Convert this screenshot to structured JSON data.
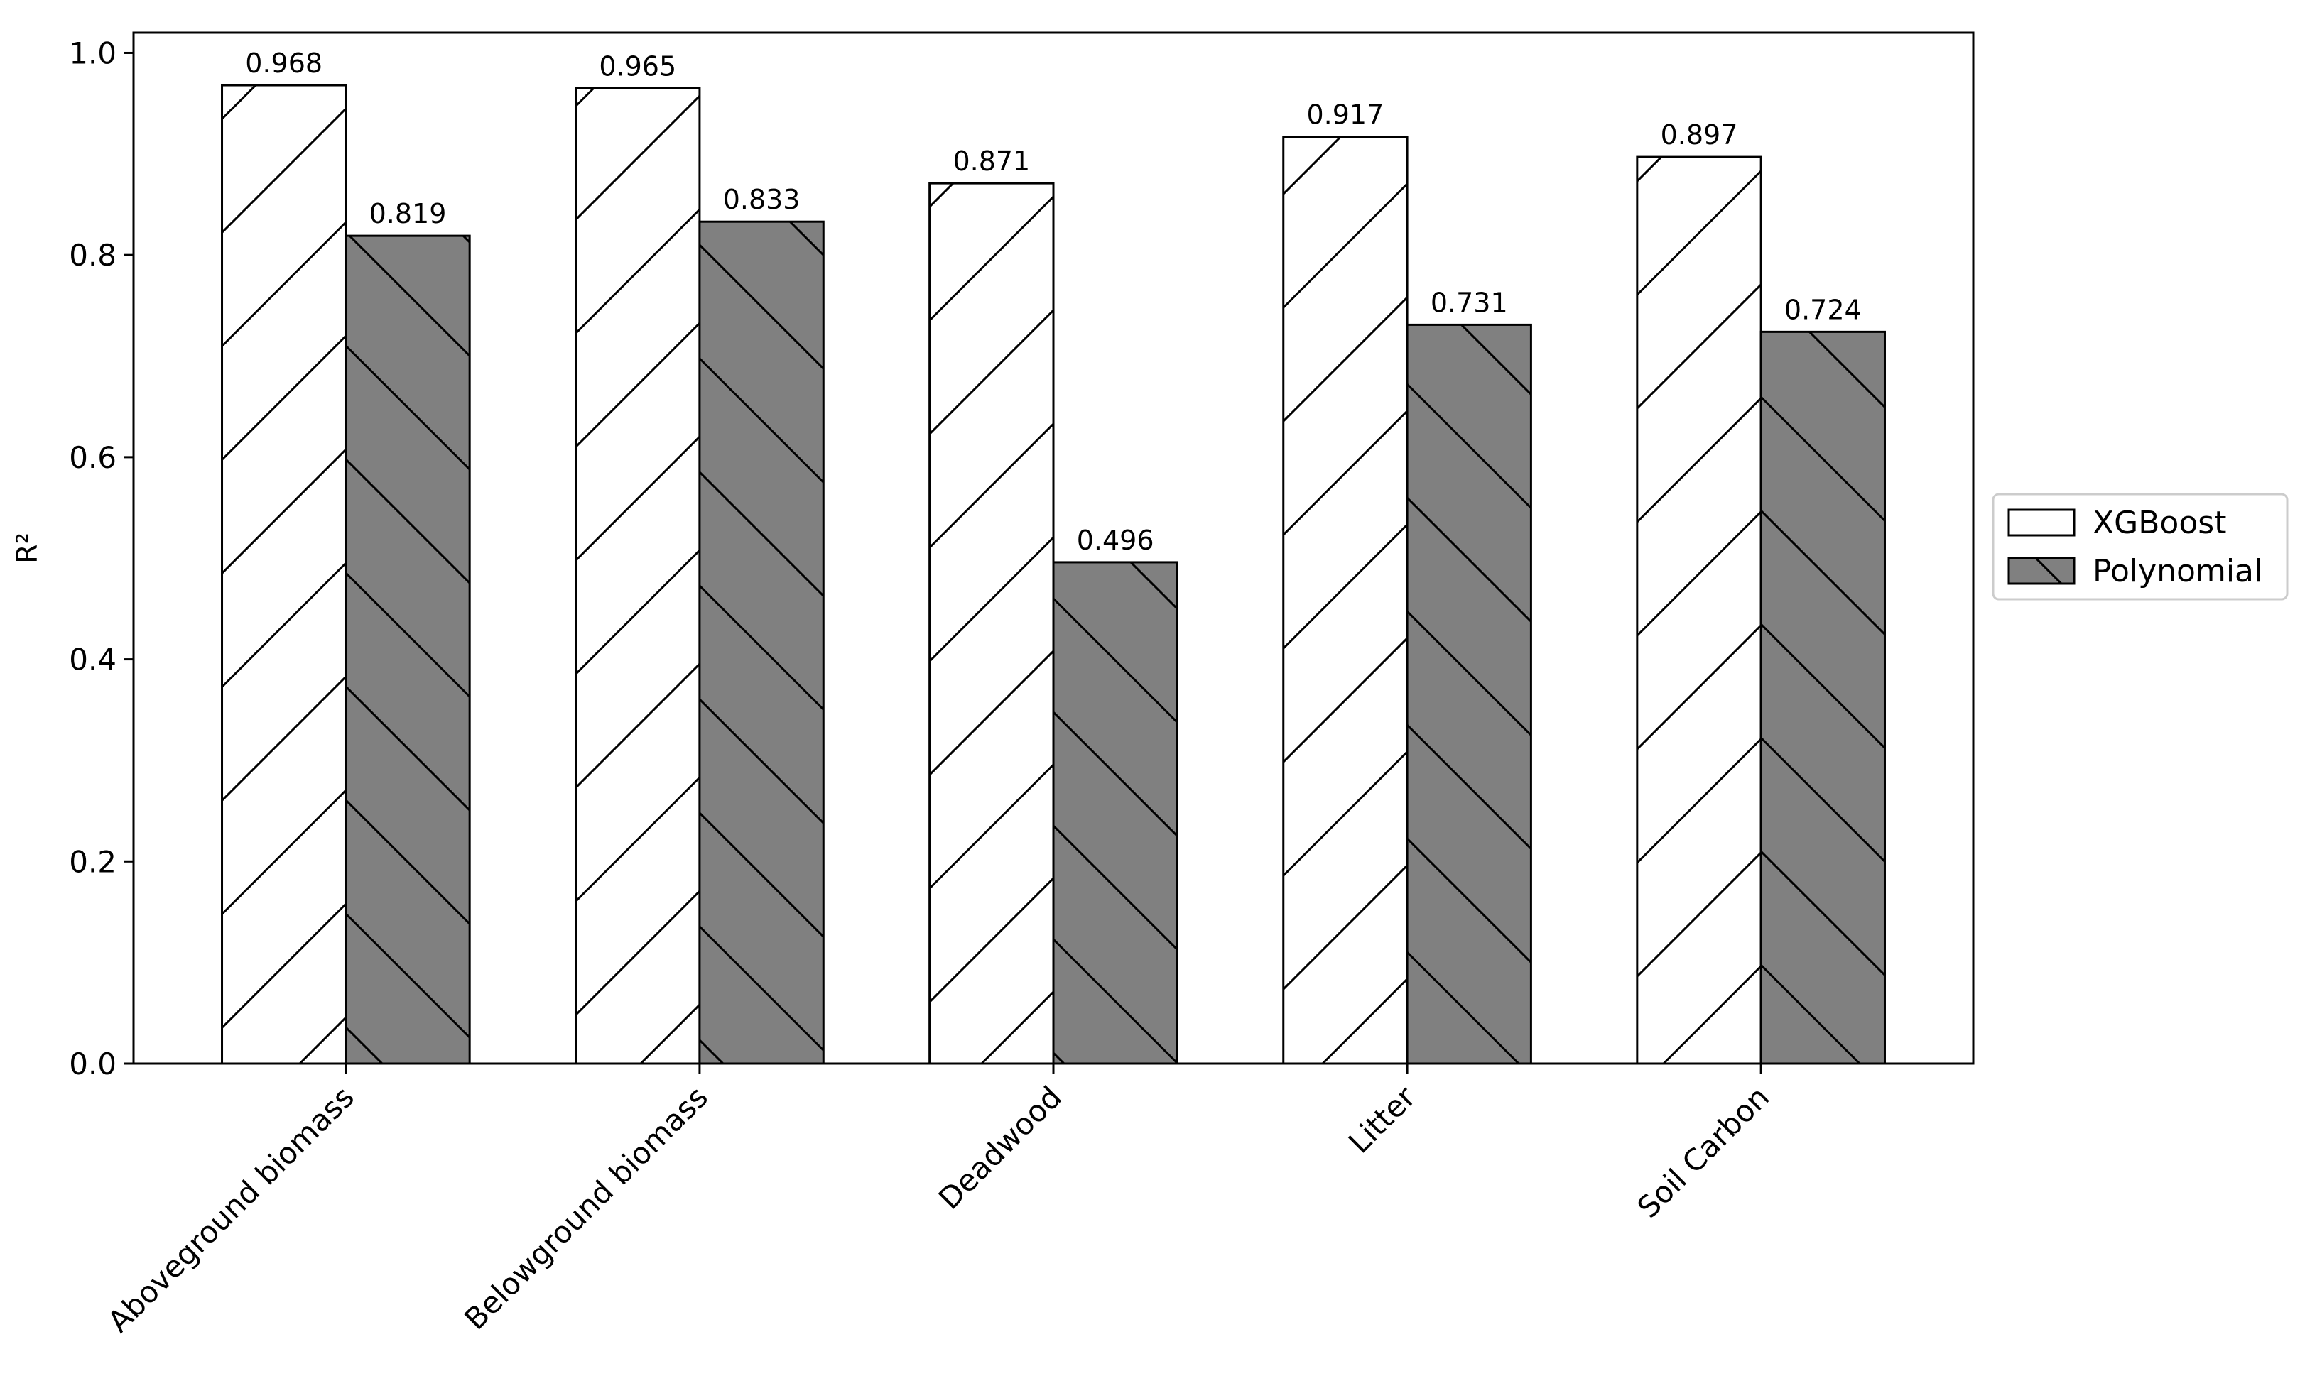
{
  "chart_data": {
    "type": "bar",
    "title": "",
    "xlabel": "",
    "ylabel": "R²",
    "ylim": [
      0,
      1.0
    ],
    "yticks": [
      "0.0",
      "0.2",
      "0.4",
      "0.6",
      "0.8",
      "1.0"
    ],
    "categories": [
      "Aboveground biomass",
      "Belowground biomass",
      "Deadwood",
      "Litter",
      "Soil Carbon"
    ],
    "series": [
      {
        "name": "XGBoost",
        "values": [
          0.968,
          0.965,
          0.871,
          0.917,
          0.897
        ],
        "labels": [
          "0.968",
          "0.965",
          "0.871",
          "0.917",
          "0.897"
        ],
        "fill": "#ffffff",
        "hatch": "forward-diagonal"
      },
      {
        "name": "Polynomial",
        "values": [
          0.819,
          0.833,
          0.496,
          0.731,
          0.724
        ],
        "labels": [
          "0.819",
          "0.833",
          "0.496",
          "0.731",
          "0.724"
        ],
        "fill": "#808080",
        "hatch": "back-diagonal"
      }
    ],
    "legend_position": "right, outside plot",
    "grid": false,
    "edge_color": "#000000"
  }
}
